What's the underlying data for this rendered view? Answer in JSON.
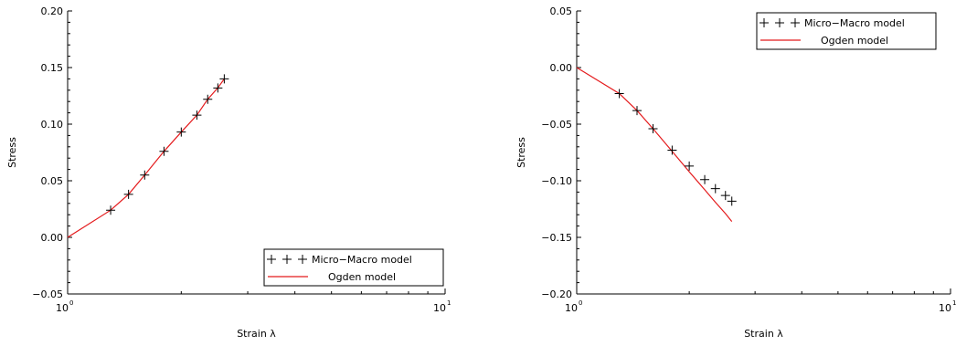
{
  "chart_data": [
    {
      "type": "line",
      "xlabel": "Strain λ",
      "ylabel": "Stress",
      "xscale": "log",
      "xlim": [
        1,
        10
      ],
      "ylim": [
        -0.05,
        0.2
      ],
      "x_ticks": [
        {
          "base": "10",
          "exp": "0"
        },
        {
          "base": "10",
          "exp": "1"
        }
      ],
      "y_ticks": [
        "−0.05",
        "0.00",
        "0.05",
        "0.10",
        "0.15",
        "0.20"
      ],
      "y_tick_values": [
        -0.05,
        0.0,
        0.05,
        0.1,
        0.15,
        0.2
      ],
      "legend_position": "bottom-right",
      "series": [
        {
          "name": "Micro−Macro model",
          "marker": "+",
          "color": "#000000",
          "x": [
            1.3,
            1.45,
            1.6,
            1.8,
            2.0,
            2.2,
            2.35,
            2.5,
            2.6
          ],
          "y": [
            0.024,
            0.038,
            0.055,
            0.076,
            0.093,
            0.108,
            0.122,
            0.132,
            0.14
          ]
        },
        {
          "name": "Ogden model",
          "marker": "line",
          "color": "#e41a1c",
          "x": [
            1.0,
            1.3,
            1.45,
            1.6,
            1.8,
            2.0,
            2.2,
            2.35,
            2.5,
            2.6
          ],
          "y": [
            0.0,
            0.024,
            0.038,
            0.055,
            0.076,
            0.093,
            0.108,
            0.122,
            0.132,
            0.14
          ]
        }
      ]
    },
    {
      "type": "line",
      "xlabel": "Strain λ",
      "ylabel": "Stress",
      "xscale": "log",
      "xlim": [
        1,
        10
      ],
      "ylim": [
        -0.2,
        0.05
      ],
      "x_ticks": [
        {
          "base": "10",
          "exp": "0"
        },
        {
          "base": "10",
          "exp": "1"
        }
      ],
      "y_ticks": [
        "−0.20",
        "−0.15",
        "−0.10",
        "−0.05",
        "0.00",
        "0.05"
      ],
      "y_tick_values": [
        -0.2,
        -0.15,
        -0.1,
        -0.05,
        0.0,
        0.05
      ],
      "legend_position": "top-right",
      "series": [
        {
          "name": "Micro−Macro model",
          "marker": "+",
          "color": "#000000",
          "x": [
            1.3,
            1.45,
            1.6,
            1.8,
            2.0,
            2.2,
            2.35,
            2.5,
            2.6
          ],
          "y": [
            -0.023,
            -0.038,
            -0.054,
            -0.073,
            -0.087,
            -0.099,
            -0.107,
            -0.113,
            -0.118
          ]
        },
        {
          "name": "Ogden model",
          "marker": "line",
          "color": "#e41a1c",
          "x": [
            1.0,
            1.3,
            1.45,
            1.6,
            1.8,
            2.0,
            2.2,
            2.35,
            2.5,
            2.6
          ],
          "y": [
            0.0,
            -0.023,
            -0.038,
            -0.054,
            -0.074,
            -0.092,
            -0.108,
            -0.119,
            -0.129,
            -0.136
          ]
        }
      ]
    }
  ]
}
